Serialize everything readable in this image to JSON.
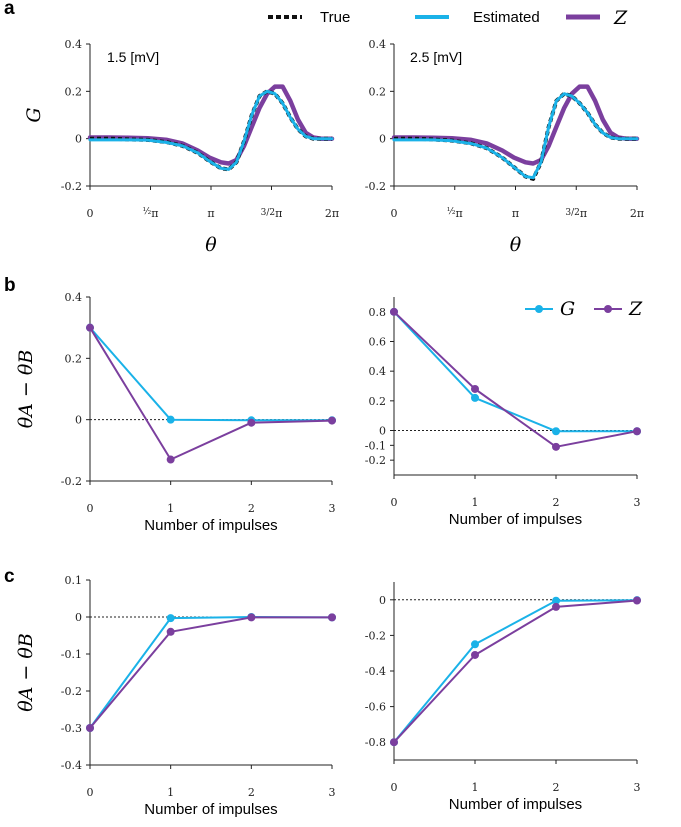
{
  "figure": {
    "panel_letters": [
      "a",
      "b",
      "c"
    ],
    "legend_top": {
      "items": [
        {
          "label": "True",
          "color": "#111111",
          "style": "dotted"
        },
        {
          "label": "Estimated",
          "color": "#1ab2e8",
          "style": "solid"
        },
        {
          "label": "Z",
          "color": "#7b3f9e",
          "style": "solid",
          "math": true
        }
      ]
    },
    "legend_b": {
      "items": [
        {
          "label": "G",
          "color": "#1ab2e8"
        },
        {
          "label": "Z",
          "color": "#7b3f9e"
        }
      ]
    },
    "colors": {
      "true": "#111111",
      "estimated": "#1ab2e8",
      "z": "#7b3f9e",
      "g": "#1ab2e8"
    }
  },
  "chart_data": [
    {
      "id": "a-left",
      "type": "line",
      "annotation": "1.5 [mV]",
      "xlabel": "θ",
      "ylabel": "G",
      "xlim": [
        0,
        6.2832
      ],
      "ylim": [
        -0.2,
        0.4
      ],
      "xticks": [
        0,
        1.5708,
        3.1416,
        4.7124,
        6.2832
      ],
      "xticklabels": [
        "0",
        "½π",
        "π",
        "3/2π",
        "2π"
      ],
      "yticks": [
        -0.2,
        0,
        0.2,
        0.4
      ],
      "yticklabels": [
        "-0.2",
        "0",
        "0.2",
        "0.4"
      ],
      "x": [
        0,
        0.5,
        1.0,
        1.5,
        2.0,
        2.4,
        2.8,
        3.1,
        3.4,
        3.6,
        3.8,
        4.0,
        4.2,
        4.4,
        4.6,
        4.8,
        5.0,
        5.2,
        5.4,
        5.6,
        5.8,
        6.0,
        6.2832
      ],
      "series": [
        {
          "name": "True",
          "values": [
            0,
            0,
            -0.003,
            -0.005,
            -0.015,
            -0.03,
            -0.06,
            -0.095,
            -0.125,
            -0.13,
            -0.1,
            -0.01,
            0.1,
            0.18,
            0.2,
            0.19,
            0.15,
            0.09,
            0.04,
            0.01,
            0,
            0,
            0
          ]
        },
        {
          "name": "Estimated",
          "values": [
            -0.005,
            -0.005,
            -0.005,
            -0.006,
            -0.016,
            -0.03,
            -0.06,
            -0.095,
            -0.125,
            -0.13,
            -0.1,
            -0.01,
            0.1,
            0.18,
            0.2,
            0.19,
            0.15,
            0.09,
            0.04,
            0.01,
            0,
            0,
            0
          ]
        },
        {
          "name": "Z",
          "values": [
            0.005,
            0.005,
            0.004,
            0.002,
            -0.005,
            -0.02,
            -0.05,
            -0.08,
            -0.1,
            -0.105,
            -0.09,
            -0.03,
            0.05,
            0.13,
            0.19,
            0.22,
            0.22,
            0.16,
            0.08,
            0.025,
            0.005,
            0,
            0
          ]
        }
      ]
    },
    {
      "id": "a-right",
      "type": "line",
      "annotation": "2.5 [mV]",
      "xlabel": "θ",
      "ylabel": "",
      "xlim": [
        0,
        6.2832
      ],
      "ylim": [
        -0.2,
        0.4
      ],
      "xticks": [
        0,
        1.5708,
        3.1416,
        4.7124,
        6.2832
      ],
      "xticklabels": [
        "0",
        "½π",
        "π",
        "3/2π",
        "2π"
      ],
      "yticks": [
        -0.2,
        0,
        0.2,
        0.4
      ],
      "yticklabels": [
        "-0.2",
        "0",
        "0.2",
        "0.4"
      ],
      "x": [
        0,
        0.5,
        1.0,
        1.5,
        2.0,
        2.4,
        2.8,
        3.1,
        3.4,
        3.6,
        3.8,
        4.0,
        4.2,
        4.4,
        4.6,
        4.8,
        5.0,
        5.2,
        5.4,
        5.6,
        5.8,
        6.0,
        6.2832
      ],
      "series": [
        {
          "name": "True",
          "values": [
            0,
            0,
            -0.003,
            -0.008,
            -0.02,
            -0.04,
            -0.08,
            -0.12,
            -0.16,
            -0.17,
            -0.1,
            0.05,
            0.16,
            0.19,
            0.18,
            0.15,
            0.11,
            0.06,
            0.025,
            0.005,
            0,
            0,
            0
          ]
        },
        {
          "name": "Estimated",
          "values": [
            -0.005,
            -0.005,
            -0.005,
            -0.009,
            -0.021,
            -0.04,
            -0.08,
            -0.12,
            -0.16,
            -0.165,
            -0.1,
            0.05,
            0.16,
            0.19,
            0.18,
            0.15,
            0.11,
            0.06,
            0.025,
            0.005,
            0,
            0,
            0
          ]
        },
        {
          "name": "Z",
          "values": [
            0.005,
            0.005,
            0.004,
            0.002,
            -0.005,
            -0.02,
            -0.05,
            -0.08,
            -0.1,
            -0.105,
            -0.09,
            -0.03,
            0.05,
            0.13,
            0.19,
            0.22,
            0.22,
            0.16,
            0.08,
            0.025,
            0.005,
            0,
            0
          ]
        }
      ]
    },
    {
      "id": "b-left",
      "type": "line",
      "xlabel": "Number of impulses",
      "ylabel": "θA − θB",
      "xlim": [
        0,
        3
      ],
      "ylim": [
        -0.2,
        0.4
      ],
      "xticks": [
        0,
        1,
        2,
        3
      ],
      "xticklabels": [
        "0",
        "1",
        "2",
        "3"
      ],
      "yticks": [
        -0.2,
        0,
        0.2,
        0.4
      ],
      "yticklabels": [
        "-0.2",
        "0",
        "0.2",
        "0.4"
      ],
      "x": [
        0,
        1,
        2,
        3
      ],
      "series": [
        {
          "name": "G",
          "values": [
            0.3,
            0.0,
            -0.002,
            -0.002
          ]
        },
        {
          "name": "Z",
          "values": [
            0.3,
            -0.13,
            -0.01,
            -0.003
          ]
        }
      ]
    },
    {
      "id": "b-right",
      "type": "line",
      "xlabel": "Number of impulses",
      "ylabel": "",
      "xlim": [
        0,
        3
      ],
      "ylim": [
        -0.3,
        0.9
      ],
      "xticks": [
        0,
        1,
        2,
        3
      ],
      "xticklabels": [
        "0",
        "1",
        "2",
        "3"
      ],
      "yticks": [
        -0.2,
        -0.1,
        0,
        0.2,
        0.4,
        0.6,
        0.8
      ],
      "yticklabels": [
        "-0.2",
        "-0.1",
        "0",
        "0.2",
        "0.4",
        "0.6",
        "0.8"
      ],
      "x": [
        0,
        1,
        2,
        3
      ],
      "series": [
        {
          "name": "G",
          "values": [
            0.8,
            0.22,
            -0.005,
            -0.005
          ]
        },
        {
          "name": "Z",
          "values": [
            0.8,
            0.28,
            -0.11,
            -0.005
          ]
        }
      ]
    },
    {
      "id": "c-left",
      "type": "line",
      "xlabel": "Number of impulses",
      "ylabel": "θA − θB",
      "xlim": [
        0,
        3
      ],
      "ylim": [
        -0.4,
        0.1
      ],
      "xticks": [
        0,
        1,
        2,
        3
      ],
      "xticklabels": [
        "0",
        "1",
        "2",
        "3"
      ],
      "yticks": [
        -0.4,
        -0.3,
        -0.2,
        -0.1,
        0,
        0.1
      ],
      "yticklabels": [
        "-0.4",
        "-0.3",
        "-0.2",
        "-0.1",
        "0",
        "0.1"
      ],
      "x": [
        0,
        1,
        2,
        3
      ],
      "series": [
        {
          "name": "G",
          "values": [
            -0.3,
            -0.003,
            0.0,
            -0.001
          ]
        },
        {
          "name": "Z",
          "values": [
            -0.3,
            -0.04,
            -0.001,
            -0.001
          ]
        }
      ]
    },
    {
      "id": "c-right",
      "type": "line",
      "xlabel": "Number of impulses",
      "ylabel": "",
      "xlim": [
        0,
        3
      ],
      "ylim": [
        -0.9,
        0.1
      ],
      "xticks": [
        0,
        1,
        2,
        3
      ],
      "xticklabels": [
        "0",
        "1",
        "2",
        "3"
      ],
      "yticks": [
        -0.8,
        -0.6,
        -0.4,
        -0.2,
        0
      ],
      "yticklabels": [
        "-0.8",
        "-0.6",
        "-0.4",
        "-0.2",
        "0"
      ],
      "x": [
        0,
        1,
        2,
        3
      ],
      "series": [
        {
          "name": "G",
          "values": [
            -0.8,
            -0.25,
            -0.005,
            -0.002
          ]
        },
        {
          "name": "Z",
          "values": [
            -0.8,
            -0.31,
            -0.04,
            -0.004
          ]
        }
      ]
    }
  ]
}
